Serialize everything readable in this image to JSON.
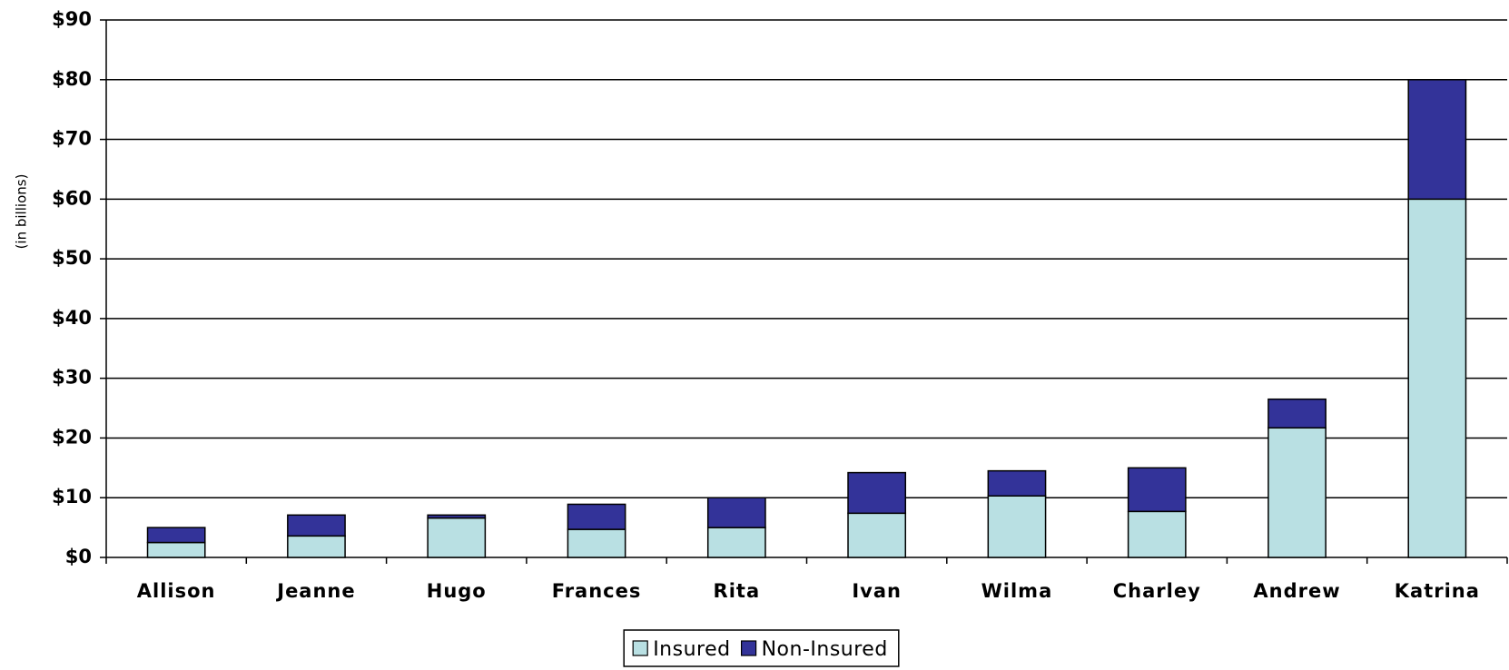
{
  "chart_data": {
    "type": "stacked_bar",
    "y_label": "(in billions)",
    "categories": [
      "Allison",
      "Jeanne",
      "Hugo",
      "Frances",
      "Rita",
      "Ivan",
      "Wilma",
      "Charley",
      "Andrew",
      "Katrina"
    ],
    "series": [
      {
        "name": "Insured",
        "color": "#b9e0e3",
        "values": [
          2.5,
          3.6,
          6.6,
          4.7,
          5,
          7.4,
          10.3,
          7.7,
          21.7,
          60
        ]
      },
      {
        "name": "Non-Insured",
        "color": "#333399",
        "values": [
          2.5,
          3.5,
          0.5,
          4.2,
          5,
          6.8,
          4.2,
          7.3,
          4.8,
          20
        ]
      }
    ],
    "ylim": [
      0,
      90
    ],
    "yticks": [
      {
        "value": 0,
        "label": "$0"
      },
      {
        "value": 10,
        "label": "$10"
      },
      {
        "value": 20,
        "label": "$20"
      },
      {
        "value": 30,
        "label": "$30"
      },
      {
        "value": 40,
        "label": "$40"
      },
      {
        "value": 50,
        "label": "$50"
      },
      {
        "value": 60,
        "label": "$60"
      },
      {
        "value": 70,
        "label": "$70"
      },
      {
        "value": 80,
        "label": "$80"
      },
      {
        "value": 90,
        "label": "$90"
      }
    ],
    "grid": true,
    "legend": "bottom"
  }
}
